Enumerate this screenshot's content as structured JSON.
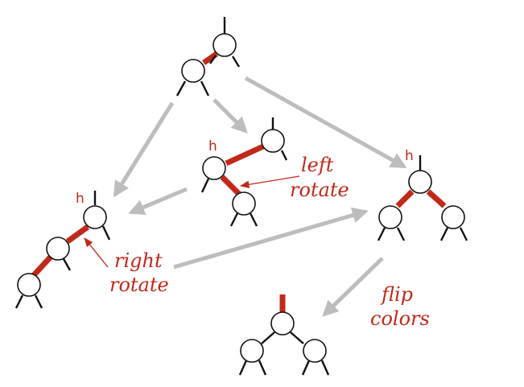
{
  "colors": {
    "red_link": "#c0291a",
    "black_link": "#111111",
    "flow_arrow": "#bdbdbd",
    "label": "#c0291a"
  },
  "labels": {
    "h": "h",
    "left_rotate": [
      "left",
      "rotate"
    ],
    "right_rotate": [
      "right",
      "rotate"
    ],
    "flip_colors": [
      "flip",
      "colors"
    ]
  }
}
